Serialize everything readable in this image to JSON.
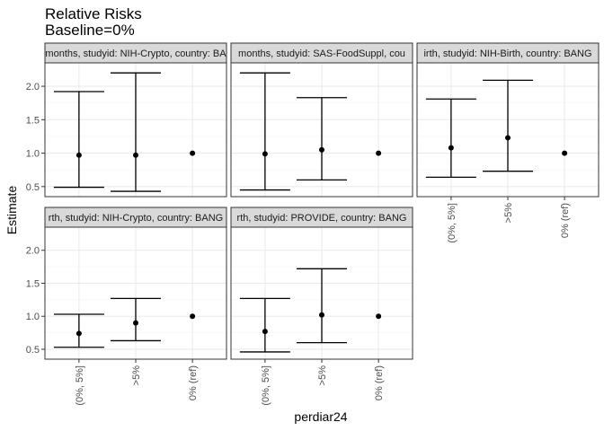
{
  "chart_data": {
    "type": "errorbar",
    "title": "Relative Risks",
    "subtitle": "Baseline=0%",
    "xlabel": "perdiar24",
    "ylabel": "Estimate",
    "categories": [
      "(0%, 5%]",
      ">5%",
      "0% (ref)"
    ],
    "ylim": [
      0.35,
      2.35
    ],
    "yticks": [
      0.5,
      1.0,
      1.5,
      2.0
    ],
    "ytick_labels": [
      "0.5",
      "1.0",
      "1.5",
      "2.0"
    ],
    "grid": true,
    "legend": "none",
    "colors": {
      "panel_border": "#333333",
      "strip_fill": "#d9d9d9",
      "grid_major": "#ebebeb",
      "grid_minor": "#f5f5f5",
      "mark": "#000000"
    },
    "panels": [
      {
        "strip_label": "months, studyid: NIH-Crypto, country: BA",
        "points": [
          {
            "x": "(0%, 5%]",
            "estimate": 0.97,
            "lower": 0.49,
            "upper": 1.92
          },
          {
            "x": ">5%",
            "estimate": 0.97,
            "lower": 0.43,
            "upper": 2.2
          },
          {
            "x": "0% (ref)",
            "estimate": 1.0
          }
        ]
      },
      {
        "strip_label": "months, studyid: SAS-FoodSuppl, cou",
        "points": [
          {
            "x": "(0%, 5%]",
            "estimate": 0.99,
            "lower": 0.45,
            "upper": 2.2
          },
          {
            "x": ">5%",
            "estimate": 1.05,
            "lower": 0.6,
            "upper": 1.83
          },
          {
            "x": "0% (ref)",
            "estimate": 1.0
          }
        ]
      },
      {
        "strip_label": "irth, studyid: NIH-Birth, country: BANG",
        "points": [
          {
            "x": "(0%, 5%]",
            "estimate": 1.08,
            "lower": 0.64,
            "upper": 1.81
          },
          {
            "x": ">5%",
            "estimate": 1.23,
            "lower": 0.73,
            "upper": 2.09
          },
          {
            "x": "0% (ref)",
            "estimate": 1.0
          }
        ]
      },
      {
        "strip_label": "rth, studyid: NIH-Crypto, country: BANG",
        "points": [
          {
            "x": "(0%, 5%]",
            "estimate": 0.74,
            "lower": 0.53,
            "upper": 1.03
          },
          {
            "x": ">5%",
            "estimate": 0.9,
            "lower": 0.63,
            "upper": 1.27
          },
          {
            "x": "0% (ref)",
            "estimate": 1.0
          }
        ]
      },
      {
        "strip_label": "rth, studyid: PROVIDE, country: BANG",
        "points": [
          {
            "x": "(0%, 5%]",
            "estimate": 0.77,
            "lower": 0.46,
            "upper": 1.27
          },
          {
            "x": ">5%",
            "estimate": 1.02,
            "lower": 0.6,
            "upper": 1.72
          },
          {
            "x": "0% (ref)",
            "estimate": 1.0
          }
        ]
      }
    ]
  }
}
